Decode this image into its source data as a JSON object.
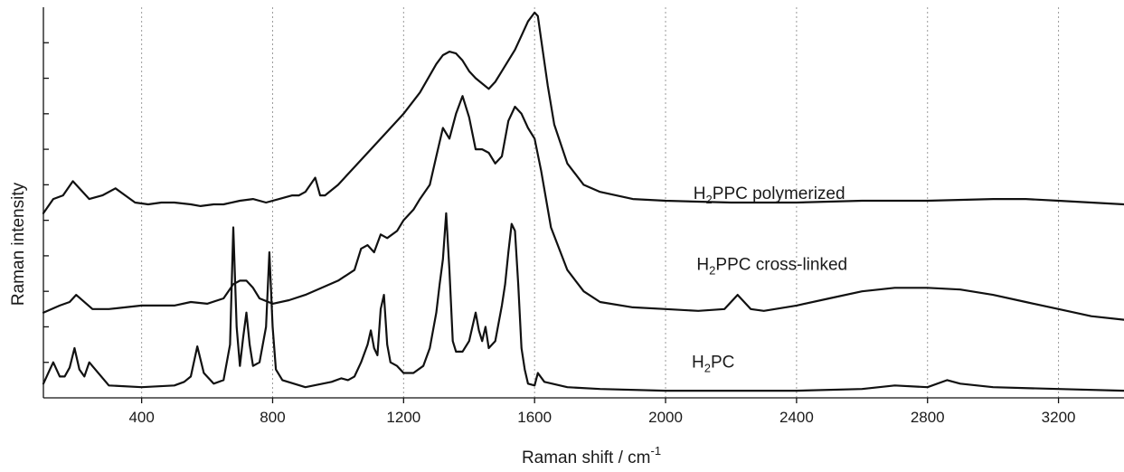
{
  "chart_data": {
    "type": "line",
    "title": "",
    "xlabel": "Raman shift / cm",
    "xlabel_sup": "-1",
    "ylabel": "Raman intensity",
    "xlim": [
      100,
      3400
    ],
    "ylim": [
      0,
      11
    ],
    "grid": "vertical dotted",
    "legend": "none (inline series labels)",
    "xticks": [
      400,
      800,
      1200,
      1600,
      2000,
      2400,
      2800,
      3200
    ],
    "yticks": [
      1,
      2,
      3,
      4,
      5,
      6,
      7,
      8,
      9,
      10
    ],
    "y_tick_labels_shown": false,
    "series": [
      {
        "label_parts": [
          "H",
          "2",
          "PC"
        ],
        "label_anchor": [
          2080,
          0.85
        ],
        "x": [
          100,
          120,
          130,
          150,
          165,
          180,
          195,
          210,
          225,
          240,
          300,
          400,
          500,
          530,
          550,
          570,
          590,
          620,
          650,
          670,
          680,
          690,
          700,
          710,
          720,
          730,
          740,
          760,
          780,
          790,
          800,
          810,
          830,
          900,
          980,
          1010,
          1030,
          1050,
          1070,
          1090,
          1100,
          1110,
          1120,
          1130,
          1140,
          1150,
          1160,
          1180,
          1200,
          1230,
          1260,
          1280,
          1300,
          1310,
          1320,
          1330,
          1340,
          1350,
          1360,
          1380,
          1400,
          1410,
          1420,
          1430,
          1440,
          1450,
          1460,
          1480,
          1500,
          1510,
          1520,
          1530,
          1540,
          1550,
          1560,
          1570,
          1580,
          1600,
          1610,
          1630,
          1700,
          1800,
          2000,
          2200,
          2400,
          2600,
          2700,
          2800,
          2860,
          2900,
          3000,
          3200,
          3400
        ],
        "y": [
          0.4,
          0.8,
          1.0,
          0.6,
          0.6,
          0.85,
          1.4,
          0.8,
          0.6,
          1.0,
          0.35,
          0.3,
          0.35,
          0.45,
          0.6,
          1.45,
          0.7,
          0.4,
          0.5,
          1.5,
          4.8,
          2.0,
          0.9,
          1.7,
          2.4,
          1.5,
          0.9,
          1.0,
          2.0,
          4.1,
          2.0,
          0.8,
          0.5,
          0.3,
          0.45,
          0.55,
          0.5,
          0.6,
          1.0,
          1.5,
          1.9,
          1.4,
          1.2,
          2.5,
          2.9,
          1.5,
          1.0,
          0.9,
          0.7,
          0.7,
          0.9,
          1.4,
          2.4,
          3.2,
          3.9,
          5.2,
          3.6,
          1.6,
          1.3,
          1.3,
          1.6,
          2.0,
          2.4,
          1.9,
          1.6,
          2.0,
          1.4,
          1.6,
          2.6,
          3.2,
          4.1,
          4.9,
          4.7,
          3.2,
          1.4,
          0.8,
          0.4,
          0.35,
          0.7,
          0.45,
          0.3,
          0.25,
          0.2,
          0.2,
          0.2,
          0.25,
          0.35,
          0.3,
          0.5,
          0.4,
          0.3,
          0.25,
          0.2
        ]
      },
      {
        "label_parts": [
          "H",
          "2",
          "PPC cross-linked"
        ],
        "label_anchor": [
          2095,
          3.6
        ],
        "x": [
          100,
          150,
          180,
          200,
          250,
          300,
          400,
          500,
          550,
          600,
          650,
          680,
          700,
          720,
          740,
          760,
          800,
          850,
          900,
          950,
          1000,
          1050,
          1070,
          1090,
          1110,
          1130,
          1150,
          1180,
          1200,
          1230,
          1250,
          1280,
          1300,
          1320,
          1340,
          1360,
          1380,
          1400,
          1420,
          1440,
          1460,
          1480,
          1500,
          1520,
          1540,
          1560,
          1580,
          1600,
          1620,
          1650,
          1700,
          1750,
          1800,
          1900,
          2000,
          2100,
          2180,
          2220,
          2260,
          2300,
          2400,
          2500,
          2600,
          2700,
          2800,
          2900,
          3000,
          3100,
          3200,
          3300,
          3400
        ],
        "y": [
          2.4,
          2.6,
          2.7,
          2.9,
          2.5,
          2.5,
          2.6,
          2.6,
          2.7,
          2.65,
          2.8,
          3.2,
          3.3,
          3.3,
          3.1,
          2.8,
          2.65,
          2.75,
          2.9,
          3.1,
          3.3,
          3.6,
          4.2,
          4.3,
          4.1,
          4.6,
          4.5,
          4.7,
          5.0,
          5.3,
          5.6,
          6.0,
          6.8,
          7.6,
          7.3,
          8.0,
          8.5,
          7.9,
          7.0,
          7.0,
          6.9,
          6.6,
          6.8,
          7.8,
          8.2,
          8.0,
          7.6,
          7.3,
          6.4,
          4.8,
          3.6,
          3.0,
          2.7,
          2.55,
          2.5,
          2.45,
          2.5,
          2.9,
          2.5,
          2.45,
          2.6,
          2.8,
          3.0,
          3.1,
          3.1,
          3.05,
          2.9,
          2.7,
          2.5,
          2.3,
          2.2
        ]
      },
      {
        "label_parts": [
          "H",
          "2",
          "PPC polymerized"
        ],
        "label_anchor": [
          2085,
          5.6
        ],
        "x": [
          100,
          130,
          160,
          190,
          210,
          240,
          280,
          320,
          350,
          380,
          420,
          460,
          500,
          550,
          580,
          620,
          650,
          700,
          740,
          780,
          820,
          860,
          880,
          900,
          930,
          945,
          960,
          1000,
          1050,
          1100,
          1150,
          1200,
          1250,
          1300,
          1320,
          1340,
          1360,
          1380,
          1400,
          1420,
          1440,
          1460,
          1480,
          1500,
          1520,
          1540,
          1560,
          1580,
          1600,
          1610,
          1620,
          1640,
          1660,
          1700,
          1750,
          1800,
          1900,
          2000,
          2200,
          2400,
          2600,
          2800,
          3000,
          3100,
          3200,
          3300,
          3400
        ],
        "y": [
          5.2,
          5.6,
          5.7,
          6.1,
          5.9,
          5.6,
          5.7,
          5.9,
          5.7,
          5.5,
          5.45,
          5.5,
          5.5,
          5.45,
          5.4,
          5.45,
          5.45,
          5.55,
          5.6,
          5.5,
          5.6,
          5.7,
          5.7,
          5.8,
          6.2,
          5.7,
          5.7,
          6.0,
          6.5,
          7.0,
          7.5,
          8.0,
          8.6,
          9.4,
          9.65,
          9.75,
          9.7,
          9.5,
          9.2,
          9.0,
          8.85,
          8.7,
          8.9,
          9.2,
          9.5,
          9.8,
          10.2,
          10.6,
          10.85,
          10.75,
          10.1,
          8.8,
          7.7,
          6.6,
          6.0,
          5.8,
          5.6,
          5.55,
          5.5,
          5.5,
          5.55,
          5.55,
          5.6,
          5.6,
          5.55,
          5.5,
          5.45
        ]
      }
    ]
  }
}
